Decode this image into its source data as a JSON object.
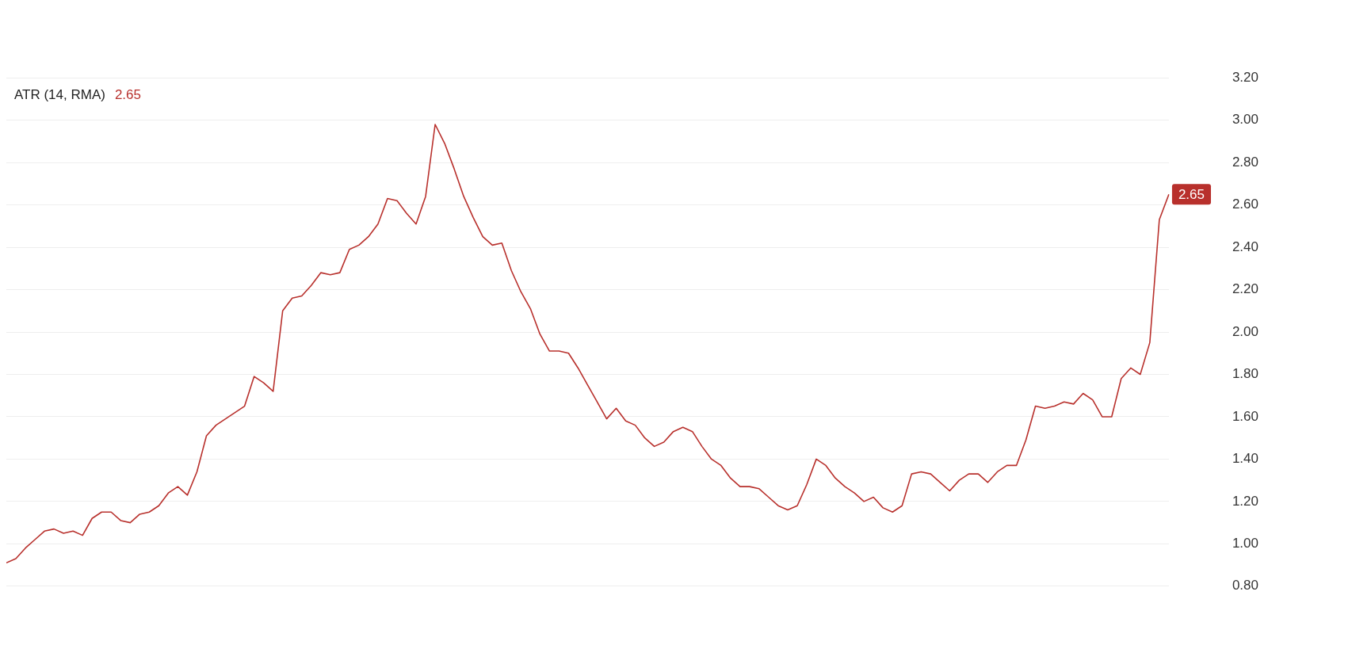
{
  "chart_data": {
    "type": "line",
    "title": "ATR (14, RMA)",
    "annotations": [
      "2.65"
    ],
    "categories": [
      null,
      null,
      null,
      null,
      null,
      null,
      null,
      null,
      null,
      null,
      null,
      null,
      null,
      null,
      null,
      null,
      null,
      null,
      null,
      null,
      null,
      null,
      null,
      null,
      null,
      null,
      null,
      null,
      null,
      null,
      null,
      null,
      null,
      null,
      null,
      null,
      null,
      null,
      null,
      null,
      null,
      null,
      null,
      null,
      null,
      null,
      null,
      null,
      null,
      null,
      null,
      null,
      null,
      null,
      null,
      null,
      null,
      null,
      null,
      null,
      null,
      null,
      null,
      null,
      null,
      null,
      null,
      null,
      null,
      null,
      null,
      null,
      null,
      null,
      null,
      null,
      null,
      null,
      null,
      null,
      null,
      null,
      null,
      null,
      null,
      null,
      null,
      null,
      null,
      null,
      null,
      null,
      null,
      null,
      null,
      null,
      null,
      null,
      null,
      null,
      null,
      null,
      null,
      null,
      null,
      null,
      null,
      null,
      null,
      null,
      null,
      null,
      null,
      null,
      null,
      null,
      null,
      null,
      null,
      null,
      null,
      null,
      null
    ],
    "series": [
      {
        "color": "#b8302c",
        "values": [
          0.91,
          0.93,
          0.98,
          1.02,
          1.06,
          1.07,
          1.05,
          1.06,
          1.04,
          1.12,
          1.15,
          1.15,
          1.11,
          1.1,
          1.14,
          1.15,
          1.18,
          1.24,
          1.27,
          1.23,
          1.34,
          1.51,
          1.56,
          1.59,
          1.62,
          1.65,
          1.79,
          1.76,
          1.72,
          2.1,
          2.16,
          2.17,
          2.22,
          2.28,
          2.27,
          2.28,
          2.39,
          2.41,
          2.45,
          2.51,
          2.63,
          2.62,
          2.56,
          2.51,
          2.64,
          2.98,
          2.89,
          2.77,
          2.64,
          2.54,
          2.45,
          2.41,
          2.42,
          2.29,
          2.19,
          2.11,
          1.99,
          1.91,
          1.91,
          1.9,
          1.83,
          1.75,
          1.67,
          1.59,
          1.64,
          1.58,
          1.56,
          1.5,
          1.46,
          1.48,
          1.53,
          1.55,
          1.53,
          1.46,
          1.4,
          1.37,
          1.31,
          1.27,
          1.27,
          1.26,
          1.22,
          1.18,
          1.16,
          1.18,
          1.28,
          1.4,
          1.37,
          1.31,
          1.27,
          1.24,
          1.2,
          1.22,
          1.17,
          1.15,
          1.18,
          1.33,
          1.34,
          1.33,
          1.29,
          1.25,
          1.3,
          1.33,
          1.33,
          1.29,
          1.34,
          1.37,
          1.37,
          1.49,
          1.65,
          1.64,
          1.65,
          1.67,
          1.66,
          1.71,
          1.68,
          1.6,
          1.6,
          1.78,
          1.83,
          1.8,
          1.95,
          2.53,
          2.65
        ],
        "value_labels": [
          null,
          null,
          null,
          null,
          null,
          null,
          null,
          null,
          null,
          null,
          null,
          null,
          null,
          null,
          null,
          null,
          null,
          null,
          null,
          null,
          null,
          null,
          null,
          null,
          null,
          null,
          null,
          null,
          null,
          null,
          null,
          null,
          null,
          null,
          null,
          null,
          null,
          null,
          null,
          null,
          null,
          null,
          null,
          null,
          null,
          null,
          null,
          null,
          null,
          null,
          null,
          null,
          null,
          null,
          null,
          null,
          null,
          null,
          null,
          null,
          null,
          null,
          null,
          null,
          null,
          null,
          null,
          null,
          null,
          null,
          null,
          null,
          null,
          null,
          null,
          null,
          null,
          null,
          null,
          null,
          null,
          null,
          null,
          null,
          null,
          null,
          null,
          null,
          null,
          null,
          null,
          null,
          null,
          null,
          null,
          null,
          null,
          null,
          null,
          null,
          null,
          null,
          null,
          null,
          null,
          null,
          null,
          null,
          null,
          null,
          null,
          null,
          null,
          null,
          null,
          null,
          null,
          null,
          null,
          null,
          null,
          null,
          "2.65"
        ]
      }
    ],
    "ylim": [
      0.8,
      3.2
    ],
    "yticks": [
      {
        "value": 0.8,
        "label": "0.80"
      },
      {
        "value": 1.0,
        "label": "1.00"
      },
      {
        "value": 1.2,
        "label": "1.20"
      },
      {
        "value": 1.4,
        "label": "1.40"
      },
      {
        "value": 1.6,
        "label": "1.60"
      },
      {
        "value": 1.8,
        "label": "1.80"
      },
      {
        "value": 2.0,
        "label": "2.00"
      },
      {
        "value": 2.2,
        "label": "2.20"
      },
      {
        "value": 2.4,
        "label": "2.40"
      },
      {
        "value": 2.6,
        "label": "2.60"
      },
      {
        "value": 2.8,
        "label": "2.80"
      },
      {
        "value": 3.0,
        "label": "3.00"
      },
      {
        "value": 3.2,
        "label": "3.20"
      }
    ],
    "grid": "y",
    "legend": false,
    "tick_labels": "y",
    "marker": "none",
    "line_style": "solid"
  }
}
